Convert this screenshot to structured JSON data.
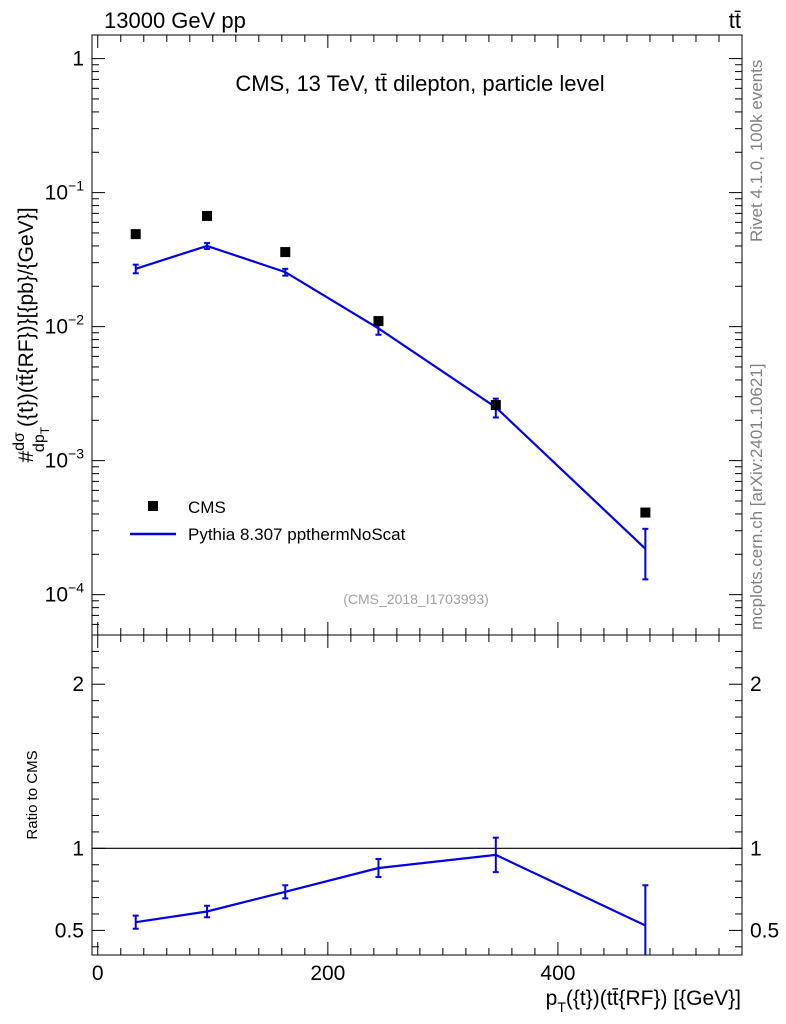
{
  "header": {
    "left": "13000 GeV pp",
    "right": "tt̄"
  },
  "side_labels": {
    "rivet": "Rivet 4.1.0,  100k events",
    "source": "mcplots.cern.ch [arXiv:2401.10621]"
  },
  "chart_data": [
    {
      "type": "scatter",
      "panel": "main",
      "title": "CMS, 13 TeV, tt̄ dilepton, particle level",
      "annotation": "(CMS_2018_I1703993)",
      "ylabel": "#dσ/dp_T({t})(tt̄{RF})}[{pb}/{GeV}]",
      "ylabel_parts": {
        "prefix": "#",
        "num": "dσ",
        "den": "dp",
        "sub": "T",
        "suffix": "({t})(tt̄{RF})}[{pb}/{GeV}]"
      },
      "yscale": "log",
      "ylim": [
        5e-05,
        1.5
      ],
      "xlim": [
        -5,
        560
      ],
      "y_ticks": [
        {
          "value": 1,
          "label": "1"
        },
        {
          "value": 0.1,
          "base": "10",
          "exp": "−1"
        },
        {
          "value": 0.01,
          "base": "10",
          "exp": "−2"
        },
        {
          "value": 0.001,
          "base": "10",
          "exp": "−3"
        },
        {
          "value": 0.0001,
          "base": "10",
          "exp": "−4"
        }
      ],
      "legend_position": "bottom-left",
      "series": [
        {
          "name": "CMS",
          "style": "markers",
          "color": "#000000",
          "x": [
            33,
            95,
            163,
            244,
            346,
            476
          ],
          "y": [
            0.049,
            0.067,
            0.036,
            0.011,
            0.0026,
            0.00041
          ]
        },
        {
          "name": "Pythia 8.307 ppthermNoScat",
          "style": "line",
          "color": "#0000e0",
          "x": [
            33,
            95,
            163,
            244,
            346,
            476
          ],
          "y": [
            0.027,
            0.04,
            0.0255,
            0.0097,
            0.0025,
            0.00022
          ],
          "err_lo": [
            0.025,
            0.038,
            0.024,
            0.0087,
            0.0021,
            0.00013
          ],
          "err_hi": [
            0.029,
            0.042,
            0.027,
            0.0107,
            0.0029,
            0.00031
          ]
        }
      ]
    },
    {
      "type": "line",
      "panel": "ratio",
      "ylabel": "Ratio to CMS",
      "xlabel": "p_T({t})(tt̄{RF}) [{GeV}]",
      "xlabel_parts": {
        "main": "p",
        "sub": "T",
        "rest": "({t})(tt̄{RF}) [{GeV}]"
      },
      "ylim": [
        0.35,
        2.3
      ],
      "xlim": [
        -5,
        560
      ],
      "x_ticks": [
        0,
        200,
        400
      ],
      "y_ticks": [
        0.5,
        1,
        2
      ],
      "reference": 1,
      "series": [
        {
          "name": "Pythia 8.307 ppthermNoScat",
          "color": "#0000e0",
          "x": [
            33,
            95,
            163,
            244,
            346,
            476
          ],
          "y": [
            0.55,
            0.615,
            0.735,
            0.88,
            0.96,
            0.53
          ],
          "err_lo": [
            0.51,
            0.58,
            0.695,
            0.825,
            0.855,
            0.33
          ],
          "err_hi": [
            0.59,
            0.65,
            0.775,
            0.935,
            1.065,
            0.775
          ]
        }
      ]
    }
  ]
}
